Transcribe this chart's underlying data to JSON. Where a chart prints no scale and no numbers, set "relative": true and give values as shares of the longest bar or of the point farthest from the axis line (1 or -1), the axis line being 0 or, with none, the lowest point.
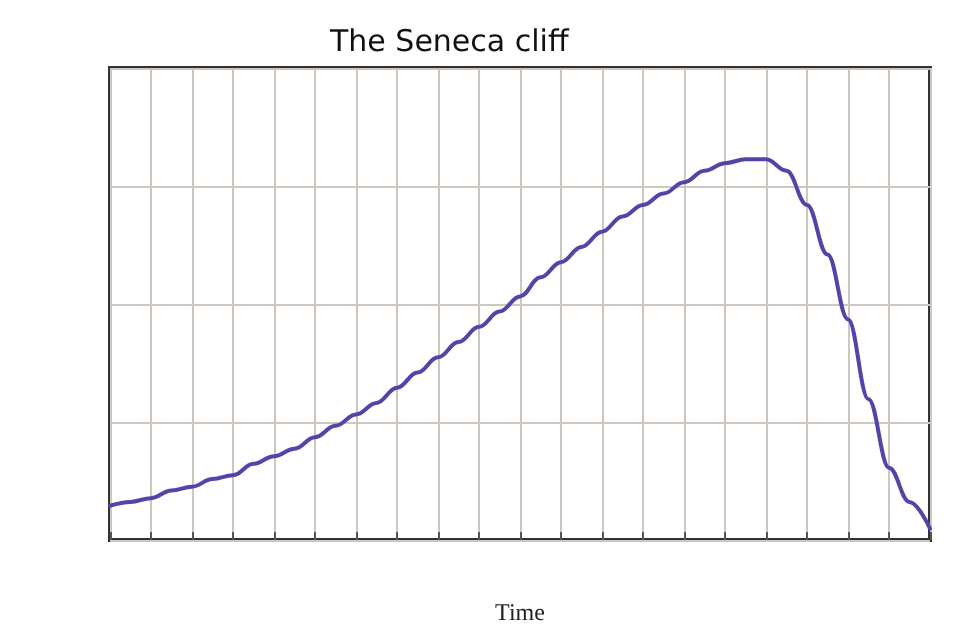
{
  "chart_data": {
    "type": "line",
    "title": "The Seneca cliff",
    "xlabel": "Time",
    "relative": true,
    "grid": true,
    "marker": "none",
    "line_style": "solid",
    "categories": [
      null,
      null,
      null,
      null,
      null,
      null,
      null,
      null,
      null,
      null,
      null,
      null,
      null,
      null,
      null,
      null,
      null,
      null,
      null,
      null,
      null,
      null,
      null,
      null,
      null,
      null,
      null,
      null,
      null,
      null,
      null,
      null,
      null,
      null,
      null,
      null,
      null,
      null,
      null,
      null,
      null
    ],
    "series": [
      {
        "color": "#5443a8",
        "values": [
          0.09,
          0.1,
          0.11,
          0.13,
          0.14,
          0.16,
          0.17,
          0.2,
          0.22,
          0.24,
          0.27,
          0.3,
          0.33,
          0.36,
          0.4,
          0.44,
          0.48,
          0.52,
          0.56,
          0.6,
          0.64,
          0.69,
          0.73,
          0.77,
          0.81,
          0.85,
          0.88,
          0.91,
          0.94,
          0.97,
          0.99,
          1.0,
          1.0,
          0.97,
          0.88,
          0.75,
          0.58,
          0.37,
          0.19,
          0.1,
          0.03
        ]
      }
    ]
  }
}
